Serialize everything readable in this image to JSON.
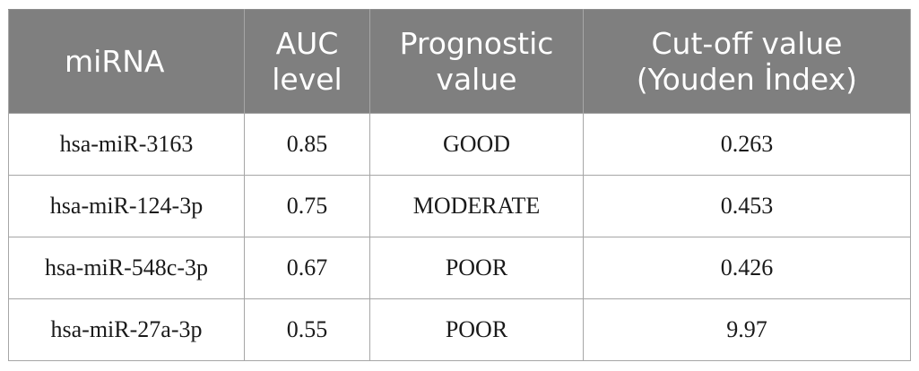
{
  "table": {
    "headers": [
      {
        "line1": "miRNA",
        "line2": ""
      },
      {
        "line1": "AUC",
        "line2": "level"
      },
      {
        "line1": "Prognostic",
        "line2": "value"
      },
      {
        "line1": "Cut-off value",
        "line2": "(Youden İndex)"
      }
    ],
    "rows": [
      {
        "mirna": "hsa-miR-3163",
        "auc": "0.85",
        "prognostic": "GOOD",
        "cutoff": "0.263"
      },
      {
        "mirna": "hsa-miR-124-3p",
        "auc": "0.75",
        "prognostic": "MODERATE",
        "cutoff": "0.453"
      },
      {
        "mirna": "hsa-miR-548c-3p",
        "auc": "0.67",
        "prognostic": "POOR",
        "cutoff": "0.426"
      },
      {
        "mirna": "hsa-miR-27a-3p",
        "auc": "0.55",
        "prognostic": "POOR",
        "cutoff": "9.97"
      }
    ]
  }
}
